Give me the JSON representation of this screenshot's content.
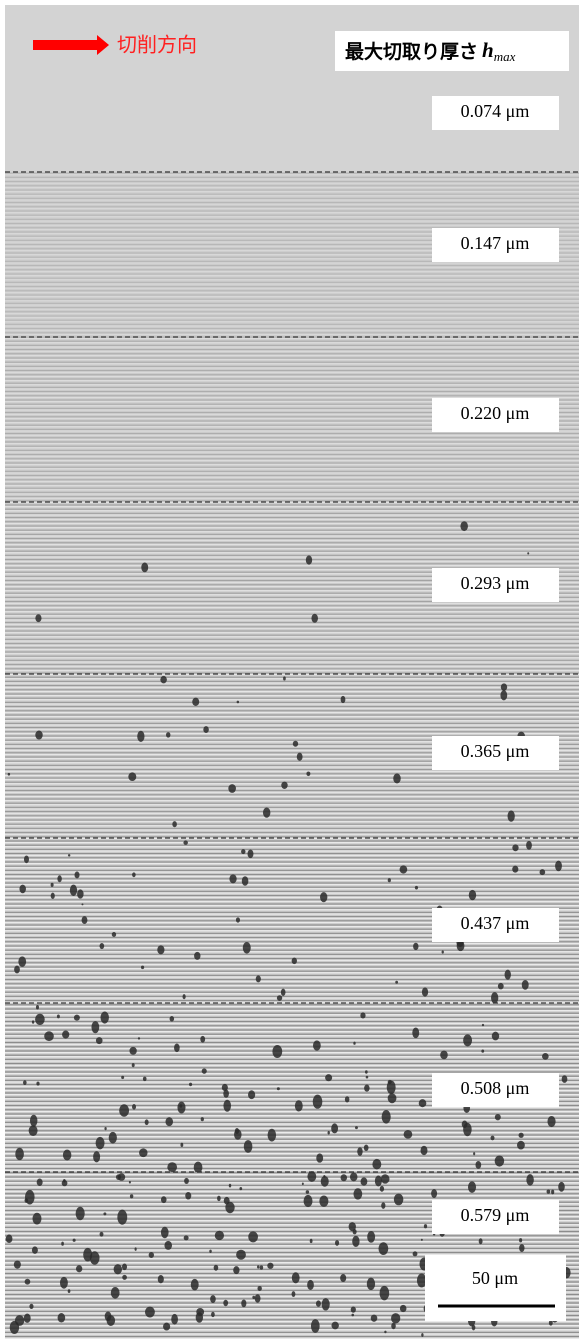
{
  "direction_label": "切削方向",
  "header": {
    "title": "最大切取り厚さ",
    "symbol": "h",
    "subscript": "max"
  },
  "bands": [
    {
      "label": "0.074 μm"
    },
    {
      "label": "0.147 μm"
    },
    {
      "label": "0.220 μm"
    },
    {
      "label": "0.293 μm"
    },
    {
      "label": "0.365 μm"
    },
    {
      "label": "0.437 μm"
    },
    {
      "label": "0.508 μm"
    },
    {
      "label": "0.579 μm"
    }
  ],
  "scale_bar": {
    "label": "50 μm"
  }
}
